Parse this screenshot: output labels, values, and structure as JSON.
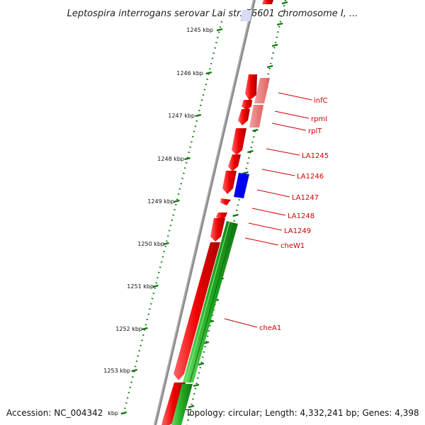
{
  "title": "Leptospira interrogans serovar Lai str. 56601 chromosome I, ...",
  "footer": {
    "accession": "Accession: NC_004342",
    "topology": "Topology: circular; Length: 4,332,241 bp; Genes: 4,398"
  },
  "kbp_labels": [
    "1245 kbp",
    "1246 kbp",
    "1247 kbp",
    "1248 kbp",
    "1249 kbp",
    "1250 kbp",
    "1251 kbp",
    "1252 kbp",
    "1253 kbp",
    "kbp"
  ],
  "gene_labels": [
    "infC",
    "rpmI",
    "rplT",
    "LA1245",
    "LA1246",
    "LA1247",
    "LA1248",
    "LA1249",
    "cheW1",
    "cheA1"
  ],
  "colors": {
    "forward_gene": "#ee0000",
    "pseudo_gene": "#f08080",
    "blue_feature": "#0000ee",
    "reverse_gene": "#22aa22",
    "backbone": "#888888",
    "ticks": "#117711",
    "label": "#cc0000"
  }
}
